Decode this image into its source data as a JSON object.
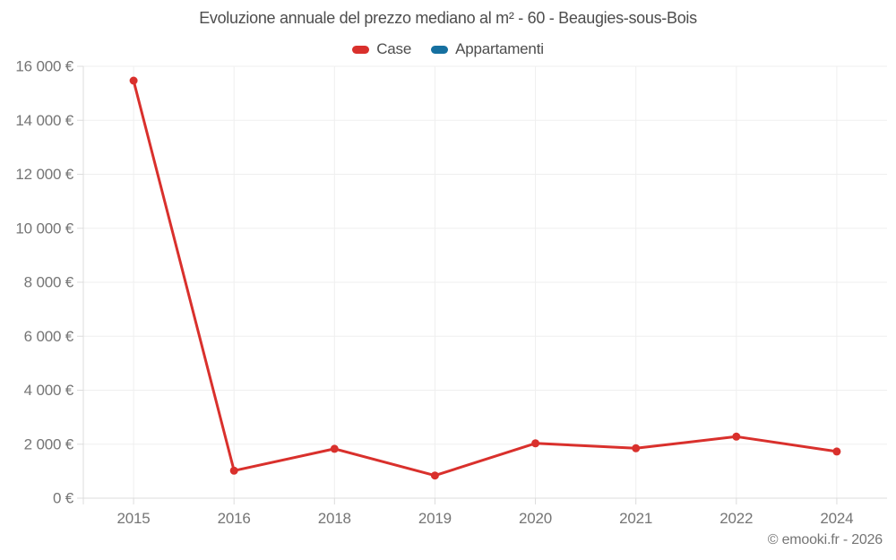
{
  "page": {
    "footer": "© emooki.fr - 2026"
  },
  "colors": {
    "title": "#4d4d4d",
    "tick_label": "#757575",
    "footer": "#757575",
    "grid": "#efefef",
    "axis": "#dcdcdc",
    "case_red": "#d9302c",
    "appartamenti_blue": "#1670a0"
  },
  "legend": [
    {
      "label": "Case",
      "color": "#d9302c"
    },
    {
      "label": "Appartamenti",
      "color": "#1670a0"
    }
  ],
  "chart_data": {
    "type": "line",
    "title": "Evoluzione annuale del prezzo mediano al m² - 60 - Beaugies-sous-Bois",
    "categories": [
      "2015",
      "2016",
      "2018",
      "2019",
      "2020",
      "2021",
      "2022",
      "2024"
    ],
    "series": [
      {
        "name": "Case",
        "color": "#d9302c",
        "values": [
          15470,
          1020,
          1830,
          840,
          2030,
          1850,
          2280,
          1730
        ]
      },
      {
        "name": "Appartamenti",
        "color": "#1670a0",
        "values": []
      }
    ],
    "ylim": [
      0,
      16000
    ],
    "yticks": [
      {
        "value": 0,
        "label": "0 €"
      },
      {
        "value": 2000,
        "label": "2 000 €"
      },
      {
        "value": 4000,
        "label": "4 000 €"
      },
      {
        "value": 6000,
        "label": "6 000 €"
      },
      {
        "value": 8000,
        "label": "8 000 €"
      },
      {
        "value": 10000,
        "label": "10 000 €"
      },
      {
        "value": 12000,
        "label": "12 000 €"
      },
      {
        "value": 14000,
        "label": "14 000 €"
      },
      {
        "value": 16000,
        "label": "16 000 €"
      }
    ],
    "grid": true,
    "legend_position": "top",
    "xlabel": "",
    "ylabel": ""
  }
}
